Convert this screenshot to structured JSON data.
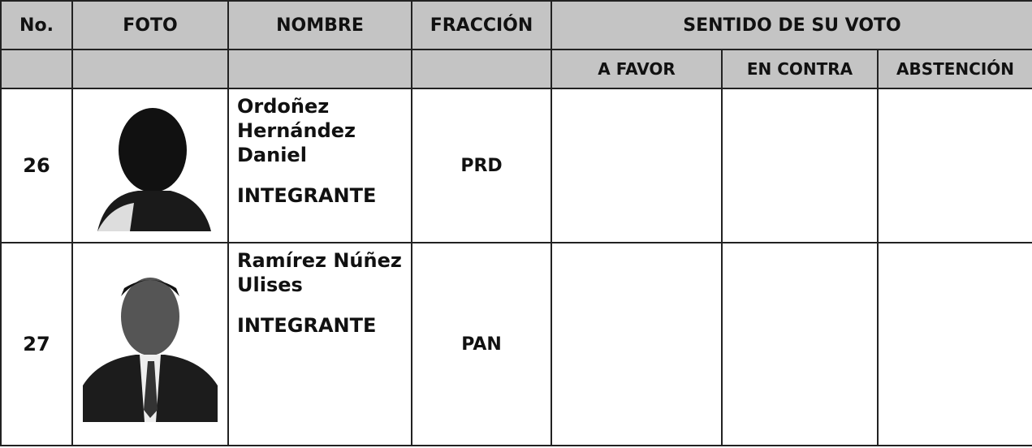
{
  "header": {
    "columns": [
      "No.",
      "FOTO",
      "NOMBRE",
      "FRACCIÓN",
      "SENTIDO DE SU VOTO"
    ],
    "vote_options": [
      "A FAVOR",
      "EN CONTRA",
      "ABSTENCIÓN"
    ]
  },
  "table": {
    "rows": [
      {
        "number": "26",
        "name": "Ordoñez Hernández Daniel",
        "role": "INTEGRANTE",
        "fraction": "PRD"
      },
      {
        "number": "27",
        "name": "Ramírez Núñez Ulises",
        "role": "INTEGRANTE",
        "fraction": "PAN"
      }
    ]
  }
}
